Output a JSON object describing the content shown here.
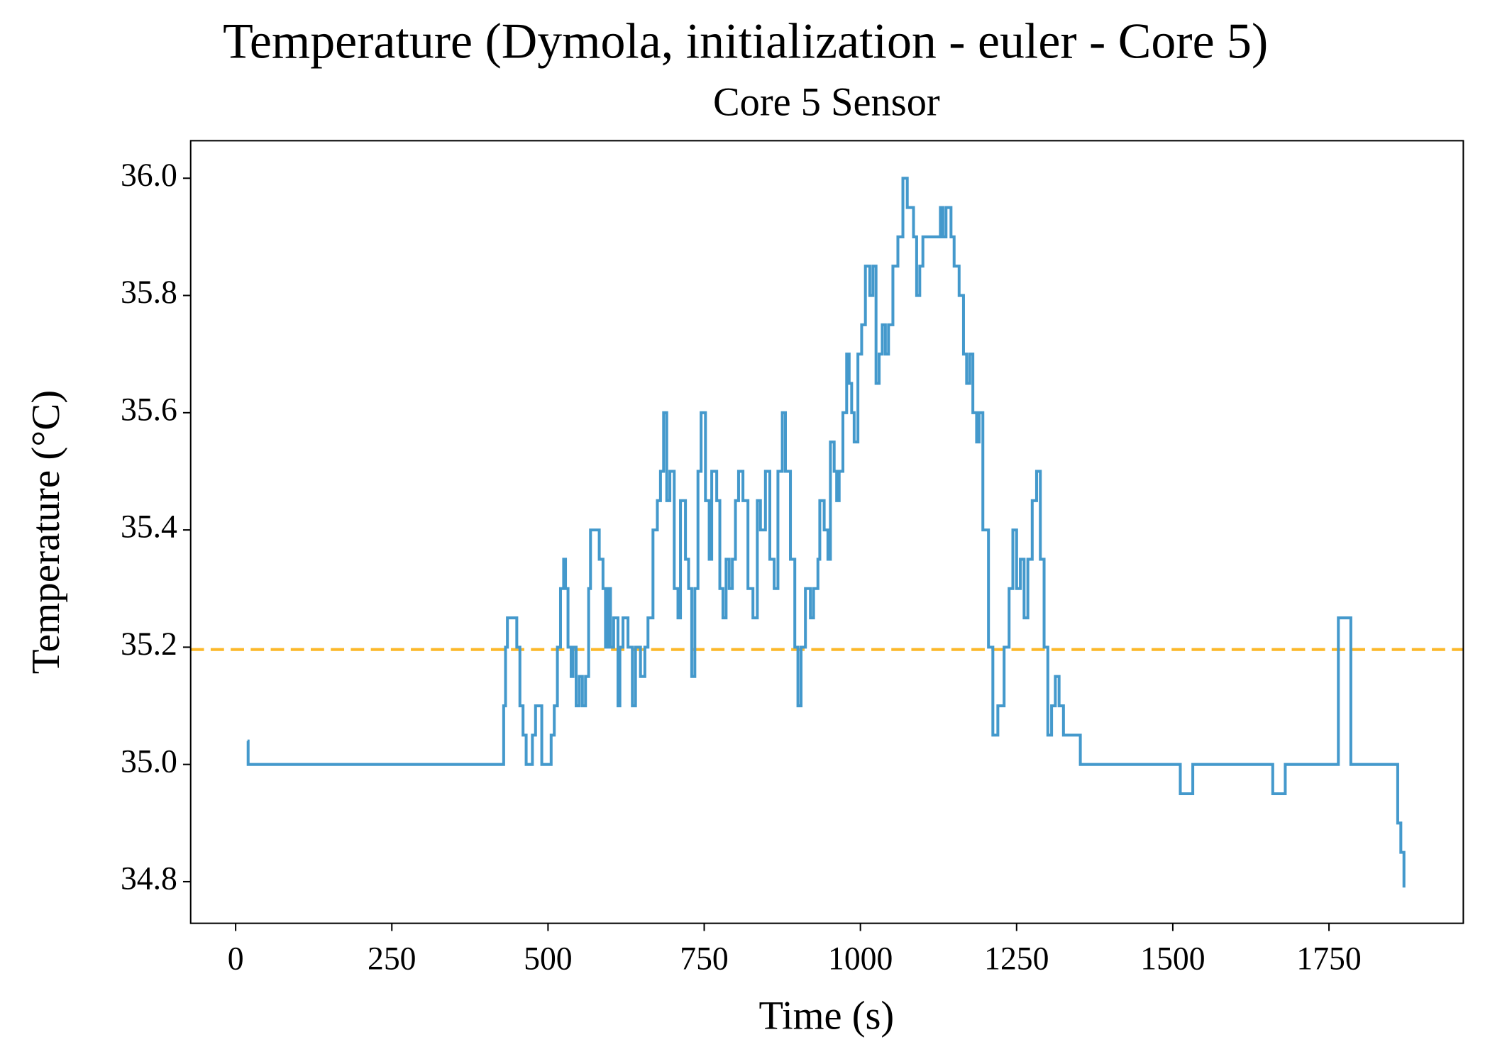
{
  "chart_data": {
    "type": "line",
    "title": "Temperature (Dymola, initialization - euler - Core 5)",
    "subtitle": "Core 5 Sensor",
    "x_label": "Time (s)",
    "y_label": "Temperature (°C)",
    "drawstyle": "steps-post",
    "xlim": [
      -72,
      1965
    ],
    "ylim": [
      34.729,
      36.064
    ],
    "xticks": [
      0,
      250,
      500,
      750,
      1000,
      1250,
      1500,
      1750
    ],
    "yticks": [
      {
        "value": 34.8,
        "label": "34.8"
      },
      {
        "value": 35.0,
        "label": "35.0"
      },
      {
        "value": 35.2,
        "label": "35.2"
      },
      {
        "value": 35.4,
        "label": "35.4"
      },
      {
        "value": 35.6,
        "label": "35.6"
      },
      {
        "value": 35.8,
        "label": "35.8"
      },
      {
        "value": 36.0,
        "label": "36.0"
      }
    ],
    "reference_line": {
      "value": 35.196,
      "color": "#fbb829",
      "dashed": true
    },
    "x": [
      19,
      20,
      429,
      432,
      435,
      450,
      455,
      460,
      465,
      475,
      480,
      490,
      505,
      510,
      515,
      520,
      525,
      528,
      532,
      537,
      540,
      545,
      550,
      555,
      560,
      565,
      568,
      570,
      582,
      588,
      592,
      596,
      600,
      605,
      612,
      615,
      620,
      628,
      635,
      640,
      648,
      655,
      660,
      668,
      675,
      680,
      685,
      690,
      695,
      702,
      708,
      712,
      720,
      725,
      730,
      735,
      740,
      745,
      752,
      758,
      762,
      770,
      775,
      780,
      785,
      790,
      795,
      800,
      805,
      812,
      820,
      828,
      835,
      840,
      848,
      855,
      862,
      868,
      875,
      880,
      888,
      895,
      900,
      905,
      912,
      920,
      925,
      932,
      935,
      942,
      948,
      952,
      958,
      962,
      966,
      972,
      978,
      982,
      986,
      990,
      996,
      1002,
      1008,
      1015,
      1020,
      1025,
      1030,
      1035,
      1040,
      1045,
      1052,
      1060,
      1068,
      1075,
      1085,
      1090,
      1095,
      1100,
      1128,
      1132,
      1137,
      1145,
      1150,
      1158,
      1165,
      1170,
      1175,
      1180,
      1186,
      1190,
      1196,
      1205,
      1212,
      1220,
      1230,
      1238,
      1244,
      1250,
      1256,
      1262,
      1268,
      1275,
      1282,
      1288,
      1294,
      1300,
      1306,
      1312,
      1318,
      1325,
      1352,
      1512,
      1532,
      1660,
      1680,
      1765,
      1785,
      1860,
      1865,
      1870
    ],
    "series": [
      {
        "name": "Core 5 Sensor",
        "color": "#4499cc",
        "values": [
          35.04,
          35.0,
          35.1,
          35.2,
          35.25,
          35.2,
          35.1,
          35.05,
          35.0,
          35.05,
          35.1,
          35.0,
          35.05,
          35.1,
          35.2,
          35.3,
          35.35,
          35.3,
          35.2,
          35.15,
          35.2,
          35.1,
          35.15,
          35.1,
          35.15,
          35.3,
          35.4,
          35.4,
          35.35,
          35.3,
          35.2,
          35.3,
          35.2,
          35.25,
          35.1,
          35.2,
          35.25,
          35.2,
          35.1,
          35.2,
          35.15,
          35.2,
          35.25,
          35.4,
          35.45,
          35.5,
          35.6,
          35.45,
          35.5,
          35.3,
          35.25,
          35.45,
          35.35,
          35.3,
          35.15,
          35.3,
          35.5,
          35.6,
          35.45,
          35.35,
          35.5,
          35.45,
          35.3,
          35.25,
          35.35,
          35.3,
          35.35,
          35.45,
          35.5,
          35.45,
          35.3,
          35.25,
          35.45,
          35.4,
          35.5,
          35.35,
          35.3,
          35.5,
          35.6,
          35.5,
          35.35,
          35.2,
          35.1,
          35.2,
          35.3,
          35.25,
          35.3,
          35.35,
          35.45,
          35.4,
          35.35,
          35.55,
          35.5,
          35.45,
          35.5,
          35.6,
          35.7,
          35.65,
          35.6,
          35.55,
          35.7,
          35.75,
          35.85,
          35.8,
          35.85,
          35.65,
          35.7,
          35.75,
          35.7,
          35.75,
          35.85,
          35.9,
          36.0,
          35.95,
          35.9,
          35.8,
          35.85,
          35.9,
          35.95,
          35.9,
          35.95,
          35.9,
          35.85,
          35.8,
          35.7,
          35.65,
          35.7,
          35.6,
          35.55,
          35.6,
          35.4,
          35.2,
          35.05,
          35.1,
          35.2,
          35.3,
          35.4,
          35.3,
          35.35,
          35.25,
          35.35,
          35.45,
          35.5,
          35.35,
          35.2,
          35.05,
          35.1,
          35.15,
          35.1,
          35.05,
          35.0,
          34.95,
          35.0,
          34.95,
          35.0,
          35.25,
          35.0,
          34.9,
          34.85,
          34.79
        ]
      }
    ]
  }
}
